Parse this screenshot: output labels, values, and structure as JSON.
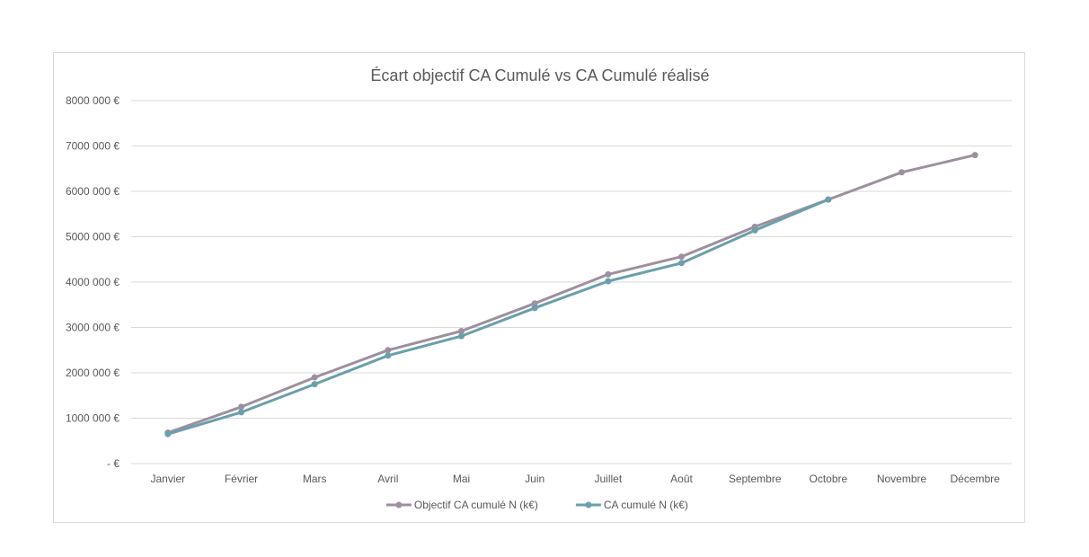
{
  "chart_data": {
    "type": "line",
    "title": "Écart objectif CA Cumulé vs CA Cumulé réalisé",
    "xlabel": "",
    "ylabel": "",
    "categories": [
      "Janvier",
      "Février",
      "Mars",
      "Avril",
      "Mai",
      "Juin",
      "Juillet",
      "Août",
      "Septembre",
      "Octobre",
      "Novembre",
      "Décembre"
    ],
    "y_ticks": [
      0,
      1000000,
      2000000,
      3000000,
      4000000,
      5000000,
      6000000,
      7000000,
      8000000
    ],
    "y_tick_labels": [
      "-   €",
      "1000 000 €",
      "2000 000 €",
      "3000 000 €",
      "4000 000 €",
      "5000 000 €",
      "6000 000 €",
      "7000 000 €",
      "8000 000 €"
    ],
    "ylim": [
      0,
      8000000
    ],
    "grid": true,
    "legend_position": "bottom",
    "series": [
      {
        "name": "Objectif CA cumulé N (k€)",
        "color": "#9e8fa0",
        "values": [
          680000,
          1250000,
          1900000,
          2500000,
          2920000,
          3530000,
          4170000,
          4560000,
          5220000,
          5820000,
          6420000,
          6800000
        ]
      },
      {
        "name": "CA cumulé N (k€)",
        "color": "#6a9fac",
        "values": [
          650000,
          1130000,
          1750000,
          2380000,
          2810000,
          3430000,
          4020000,
          4420000,
          5140000,
          5820000,
          null,
          null
        ]
      }
    ]
  }
}
